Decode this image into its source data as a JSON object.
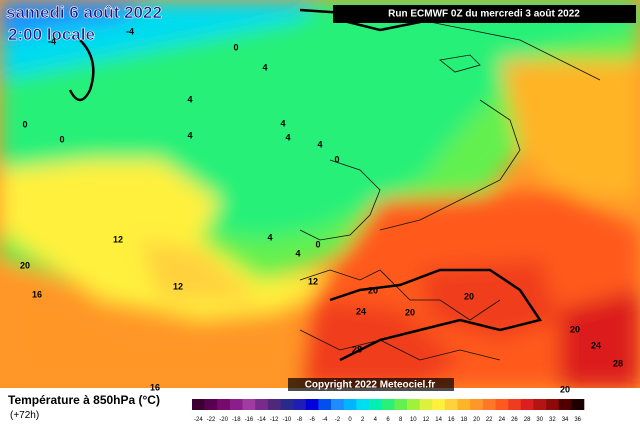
{
  "header": {
    "title": "samedi 6 août 2022",
    "subtitle": "2:00 locale",
    "run": "Run ECMWF 0Z du mercredi 3 août 2022"
  },
  "copyright": "Copyright 2022 Meteociel.fr",
  "legend": {
    "title": "Température à 850hPa (°C)",
    "subtitle": "(+72h)",
    "ticks": [
      -24,
      -22,
      -20,
      -18,
      -16,
      -14,
      -12,
      -10,
      -8,
      -6,
      -4,
      -2,
      0,
      2,
      4,
      6,
      8,
      10,
      12,
      14,
      16,
      18,
      20,
      22,
      24,
      26,
      28,
      30,
      32,
      34,
      36
    ],
    "colors": [
      "#3c0032",
      "#5a0050",
      "#780a6e",
      "#8c1e8c",
      "#a03ca0",
      "#7a2a8c",
      "#50287a",
      "#2a2a8c",
      "#1e1eb4",
      "#0000dc",
      "#0050f0",
      "#1e8cff",
      "#00b4ff",
      "#00dcf0",
      "#00f0b4",
      "#28f078",
      "#64f050",
      "#a0f03c",
      "#dcf03c",
      "#fff03c",
      "#ffd23c",
      "#ffb428",
      "#ff9628",
      "#ff7828",
      "#ff5a1e",
      "#f03c1e",
      "#dc1e1e",
      "#b41414",
      "#8c0a0a",
      "#500000",
      "#1e0000"
    ]
  },
  "map": {
    "labels": [
      "-4",
      "-4",
      "0",
      "4",
      "4",
      "4",
      "0",
      "0",
      "4",
      "4",
      "4",
      "0",
      "4",
      "4",
      "0",
      "12",
      "20",
      "16",
      "12",
      "12",
      "20",
      "24",
      "20",
      "20",
      "28",
      "20",
      "24",
      "28",
      "16",
      "20"
    ]
  }
}
